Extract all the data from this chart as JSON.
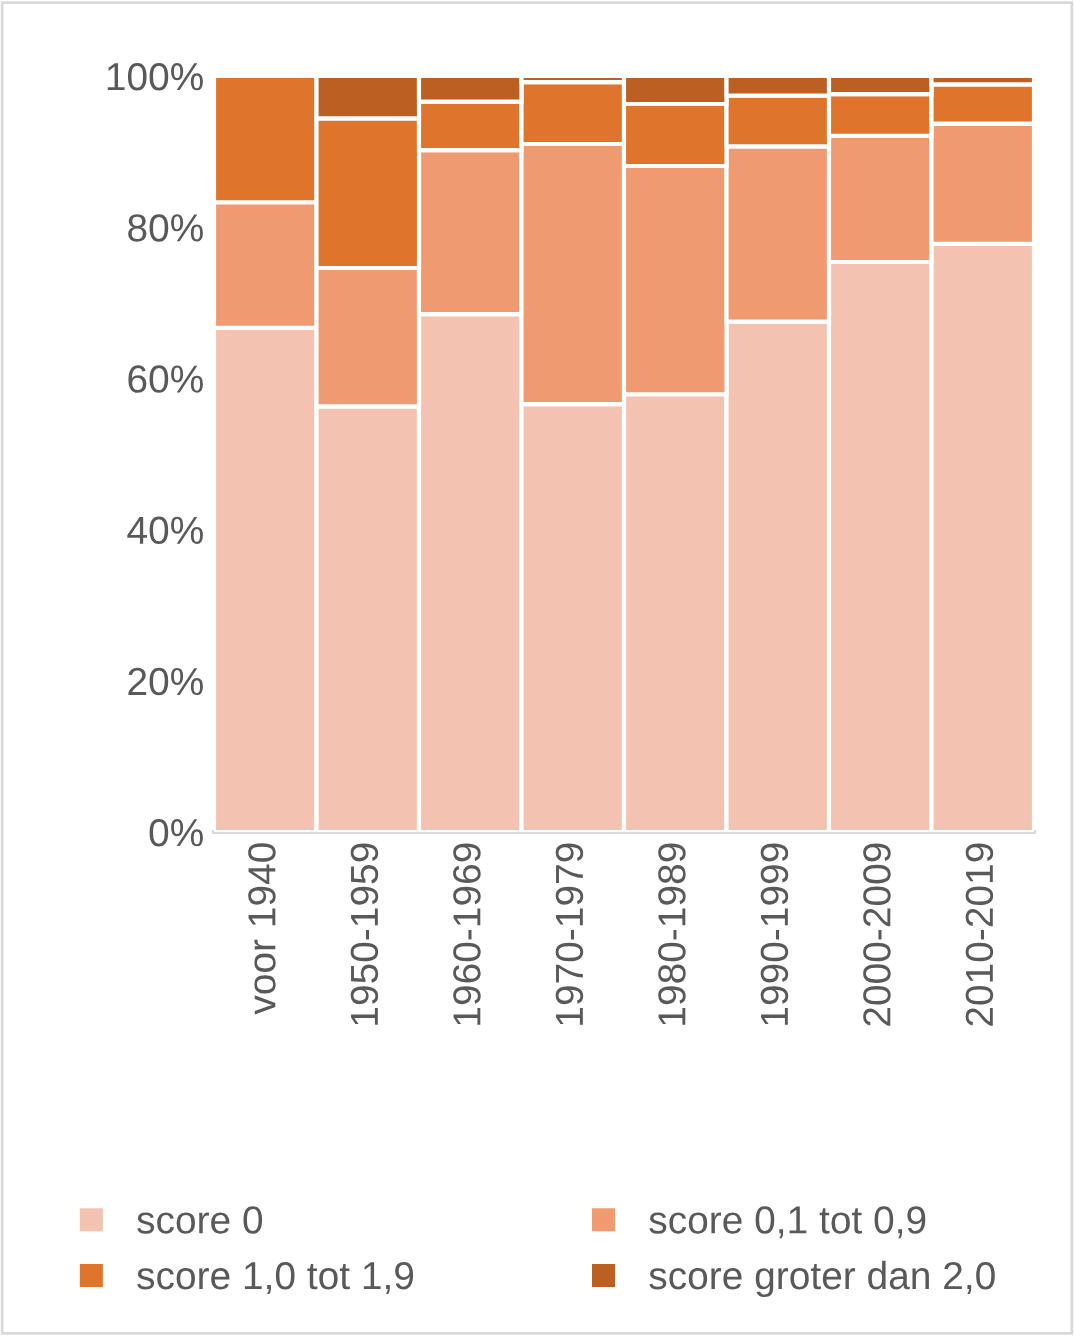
{
  "chart_data": {
    "type": "bar",
    "stacked": true,
    "categories": [
      "voor 1940",
      "1950-1959",
      "1960-1969",
      "1970-1979",
      "1980-1989",
      "1990-1999",
      "2000-2009",
      "2010-2019"
    ],
    "series": [
      {
        "name": "score 0",
        "color": "#f4c2b0",
        "values": [
          66.7,
          56.3,
          68.5,
          56.6,
          57.9,
          67.5,
          75.4,
          77.8
        ]
      },
      {
        "name": "score 0,1 tot 0,9",
        "color": "#f09a72",
        "values": [
          16.6,
          18.3,
          21.7,
          34.4,
          30.2,
          23.2,
          16.7,
          15.9
        ]
      },
      {
        "name": "score 1,0 tot 1,9",
        "color": "#df752d",
        "values": [
          16.7,
          19.8,
          6.4,
          8.2,
          8.2,
          6.7,
          5.5,
          5.2
        ]
      },
      {
        "name": "score groter dan 2,0",
        "color": "#bb6022",
        "values": [
          null,
          5.6,
          3.4,
          0.8,
          3.7,
          2.6,
          2.4,
          1.1
        ]
      }
    ],
    "ylim": [
      0,
      100
    ],
    "yticks": [
      {
        "value": 0,
        "label": "0%"
      },
      {
        "value": 20,
        "label": "20%"
      },
      {
        "value": 40,
        "label": "40%"
      },
      {
        "value": 60,
        "label": "60%"
      },
      {
        "value": 80,
        "label": "80%"
      },
      {
        "value": 100,
        "label": "100%"
      }
    ],
    "legend": "bottom"
  }
}
